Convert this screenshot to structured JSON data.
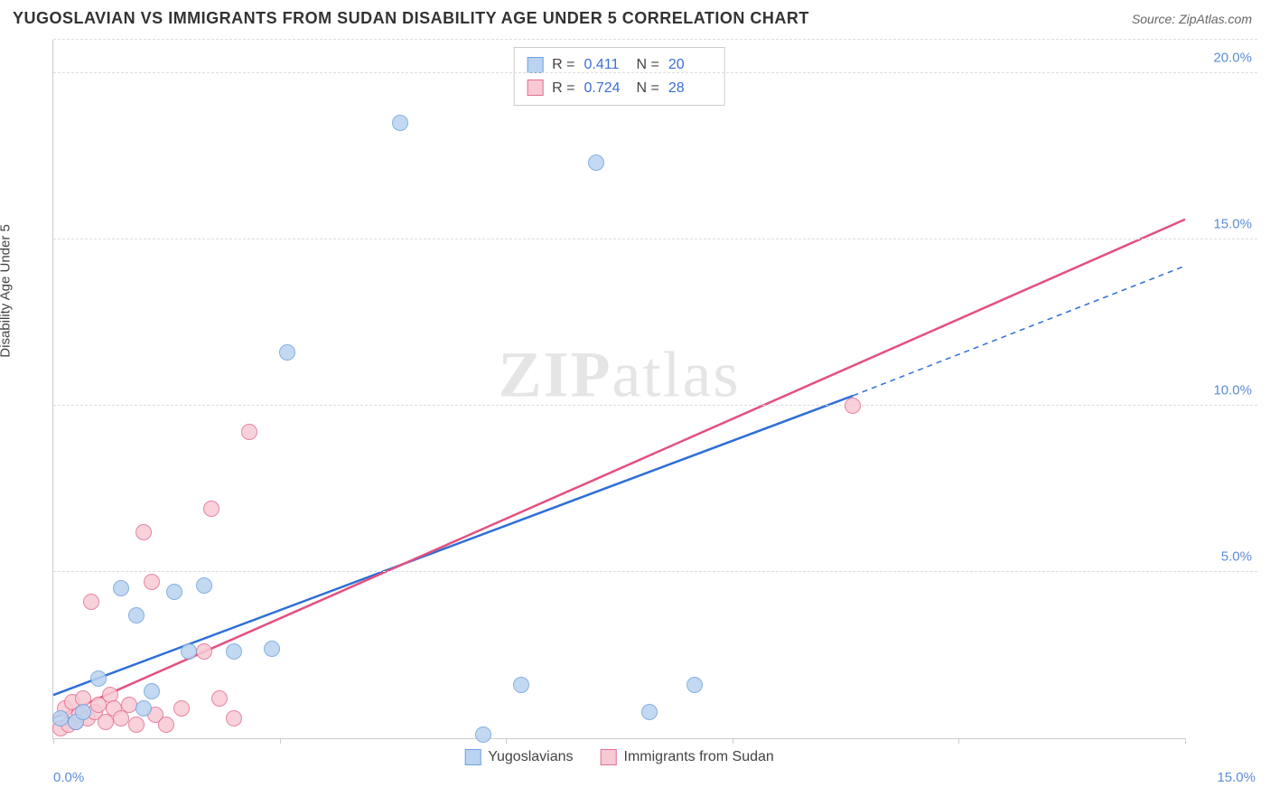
{
  "header": {
    "title": "YUGOSLAVIAN VS IMMIGRANTS FROM SUDAN DISABILITY AGE UNDER 5 CORRELATION CHART",
    "source_prefix": "Source: ",
    "source_name": "ZipAtlas.com"
  },
  "chart": {
    "type": "scatter",
    "y_axis_label": "Disability Age Under 5",
    "watermark_a": "ZIP",
    "watermark_b": "atlas",
    "background_color": "#ffffff",
    "grid_color": "#dddddd",
    "axis_color": "#cccccc",
    "tick_label_color": "#5b8dd6",
    "xlim": [
      0,
      15
    ],
    "ylim": [
      0,
      21
    ],
    "y_ticks": [
      {
        "v": 5,
        "label": "5.0%"
      },
      {
        "v": 10,
        "label": "10.0%"
      },
      {
        "v": 15,
        "label": "15.0%"
      },
      {
        "v": 20,
        "label": "20.0%"
      }
    ],
    "x_ticks_major": [
      0,
      3,
      6,
      9,
      12,
      15
    ],
    "x_tick_labels": [
      {
        "v": 0,
        "label": "0.0%",
        "cls": "first"
      },
      {
        "v": 15,
        "label": "15.0%",
        "cls": "last"
      }
    ],
    "series": [
      {
        "key": "yugo",
        "name": "Yugoslavians",
        "fill": "#b9d3f0",
        "stroke": "#6fa3de",
        "line_color": "#2e6fd6",
        "line_dash": "",
        "marker_radius": 9,
        "r_value": "0.411",
        "n_value": "20",
        "trend": {
          "x1": 0,
          "y1": 1.3,
          "x2": 10.6,
          "y2": 10.3
        },
        "trend_ext": {
          "x1": 10.6,
          "y1": 10.3,
          "x2": 15,
          "y2": 14.2
        },
        "points": [
          {
            "x": 0.1,
            "y": 0.6
          },
          {
            "x": 0.3,
            "y": 0.5
          },
          {
            "x": 0.4,
            "y": 0.8
          },
          {
            "x": 0.6,
            "y": 1.8
          },
          {
            "x": 0.9,
            "y": 4.5
          },
          {
            "x": 1.1,
            "y": 3.7
          },
          {
            "x": 1.2,
            "y": 0.9
          },
          {
            "x": 1.3,
            "y": 1.4
          },
          {
            "x": 1.6,
            "y": 4.4
          },
          {
            "x": 1.8,
            "y": 2.6
          },
          {
            "x": 2.0,
            "y": 4.6
          },
          {
            "x": 2.4,
            "y": 2.6
          },
          {
            "x": 2.9,
            "y": 2.7
          },
          {
            "x": 3.1,
            "y": 11.6
          },
          {
            "x": 4.6,
            "y": 18.5
          },
          {
            "x": 5.7,
            "y": 0.1
          },
          {
            "x": 6.2,
            "y": 1.6
          },
          {
            "x": 7.2,
            "y": 17.3
          },
          {
            "x": 7.9,
            "y": 0.8
          },
          {
            "x": 8.5,
            "y": 1.6
          }
        ]
      },
      {
        "key": "sudan",
        "name": "Immigrants from Sudan",
        "fill": "#f7c9d4",
        "stroke": "#e46f92",
        "line_color": "#e3507e",
        "line_dash": "",
        "marker_radius": 9,
        "r_value": "0.724",
        "n_value": "28",
        "trend": {
          "x1": 0,
          "y1": 0.6,
          "x2": 15,
          "y2": 15.6
        },
        "points": [
          {
            "x": 0.1,
            "y": 0.3
          },
          {
            "x": 0.15,
            "y": 0.9
          },
          {
            "x": 0.2,
            "y": 0.4
          },
          {
            "x": 0.25,
            "y": 1.1
          },
          {
            "x": 0.3,
            "y": 0.5
          },
          {
            "x": 0.35,
            "y": 0.7
          },
          {
            "x": 0.4,
            "y": 1.2
          },
          {
            "x": 0.45,
            "y": 0.6
          },
          {
            "x": 0.5,
            "y": 4.1
          },
          {
            "x": 0.55,
            "y": 0.8
          },
          {
            "x": 0.6,
            "y": 1.0
          },
          {
            "x": 0.7,
            "y": 0.5
          },
          {
            "x": 0.75,
            "y": 1.3
          },
          {
            "x": 0.8,
            "y": 0.9
          },
          {
            "x": 0.9,
            "y": 0.6
          },
          {
            "x": 1.0,
            "y": 1.0
          },
          {
            "x": 1.1,
            "y": 0.4
          },
          {
            "x": 1.2,
            "y": 6.2
          },
          {
            "x": 1.3,
            "y": 4.7
          },
          {
            "x": 1.35,
            "y": 0.7
          },
          {
            "x": 1.5,
            "y": 0.4
          },
          {
            "x": 1.7,
            "y": 0.9
          },
          {
            "x": 2.0,
            "y": 2.6
          },
          {
            "x": 2.1,
            "y": 6.9
          },
          {
            "x": 2.2,
            "y": 1.2
          },
          {
            "x": 2.4,
            "y": 0.6
          },
          {
            "x": 2.6,
            "y": 9.2
          },
          {
            "x": 10.6,
            "y": 10.0
          }
        ]
      }
    ],
    "legend_top": {
      "r_label": "R  =",
      "n_label": "N  ="
    }
  }
}
